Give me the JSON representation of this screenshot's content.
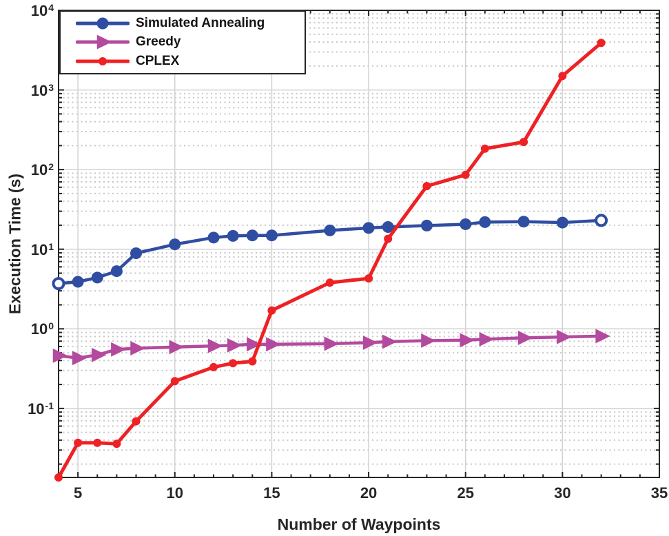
{
  "figure": {
    "xlabel": "Number of Waypoints",
    "ylabel": "Execution Time (s)"
  },
  "axes": {
    "x": {
      "label": "Number of Waypoints",
      "min": 4,
      "max": 35,
      "major_ticks": [
        5,
        10,
        15,
        20,
        25,
        30,
        35
      ],
      "minor_tick_step": 1
    },
    "y": {
      "label": "Execution Time (s)",
      "scale": "log",
      "decade_exponents": [
        4,
        3,
        2,
        1,
        0,
        -1
      ]
    }
  },
  "colors": {
    "background": "#ffffff",
    "axis": "#262626",
    "grid_major": "#d2d2d2",
    "grid_minor": "#c6c6c6",
    "text": "#262626",
    "simulated_annealing": "#2f4ea2",
    "greedy": "#b34a9e",
    "cplex": "#ee2124"
  },
  "chart_data": {
    "type": "line",
    "title": "",
    "xlabel": "Number of Waypoints",
    "ylabel": "Execution Time (s)",
    "x_scale": "linear",
    "y_scale": "log",
    "xlim": [
      4,
      35
    ],
    "ylim": [
      0.0136,
      10000
    ],
    "grid": {
      "major": "solid",
      "minor": "dotted-horizontal-only"
    },
    "legend_position": "top-left",
    "x": [
      4,
      5,
      6,
      7,
      8,
      10,
      12,
      13,
      14,
      15,
      18,
      20,
      21,
      23,
      25,
      26,
      28,
      30,
      32
    ],
    "series": [
      {
        "name": "Simulated Annealing",
        "color": "#2f4ea2",
        "marker": "circle",
        "marker_size": 8.5,
        "line_width": 4.5,
        "open_marker_indices": [
          0,
          18
        ],
        "values": [
          3.7,
          3.9,
          4.4,
          5.3,
          8.9,
          11.5,
          14.0,
          14.7,
          14.9,
          14.9,
          17.2,
          18.5,
          19.0,
          19.8,
          20.6,
          21.9,
          22.2,
          21.6,
          23.0
        ]
      },
      {
        "name": "Greedy",
        "color": "#b34a9e",
        "marker": "triangle-right",
        "marker_size": 11,
        "line_width": 4.5,
        "open_marker_indices": [],
        "values": [
          0.46,
          0.43,
          0.47,
          0.55,
          0.57,
          0.59,
          0.61,
          0.62,
          0.64,
          0.64,
          0.65,
          0.67,
          0.69,
          0.71,
          0.72,
          0.74,
          0.77,
          0.79,
          0.81
        ]
      },
      {
        "name": "CPLEX",
        "color": "#ee2124",
        "marker": "circle",
        "marker_size": 6,
        "line_width": 5,
        "open_marker_indices": [],
        "values": [
          0.0136,
          0.037,
          0.037,
          0.036,
          0.069,
          0.22,
          0.33,
          0.37,
          0.39,
          1.7,
          3.8,
          4.3,
          13.5,
          62,
          86,
          183,
          222,
          1500,
          3900
        ]
      }
    ]
  }
}
